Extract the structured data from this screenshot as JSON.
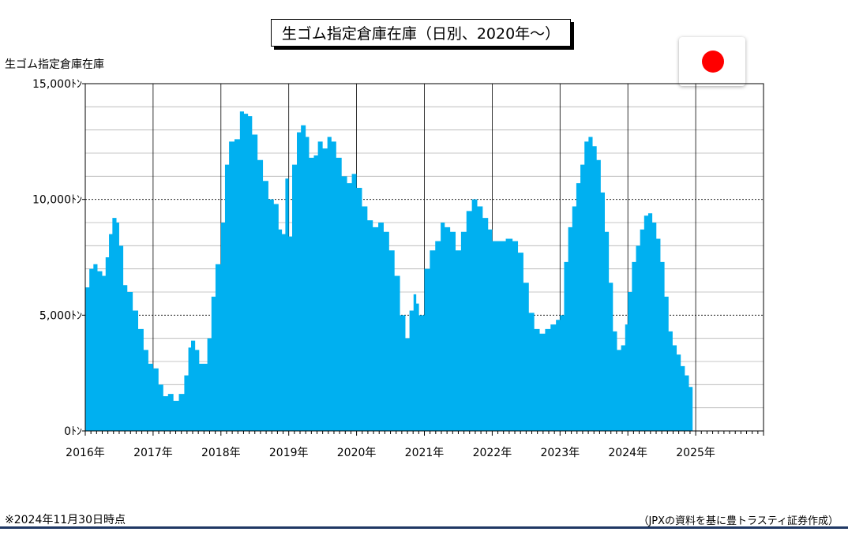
{
  "title": "生ゴム指定倉庫在庫（日別、2020年～）",
  "note": "※2024年11月30日時点",
  "source": "（JPXの資料を基に豊トラスティ証券作成）",
  "flag": {
    "icon": "japan-flag-icon",
    "color": "#ff0000"
  },
  "chart_data": {
    "type": "area",
    "ylabel": "生ゴム指定倉庫在庫",
    "ylim": [
      0,
      15000
    ],
    "yticks": [
      0,
      5000,
      10000,
      15000
    ],
    "ytick_labels": [
      "0ﾄﾝ",
      "5,000ﾄﾝ",
      "10,000ﾄﾝ",
      "15,000ﾄﾝ"
    ],
    "xlim": [
      2016,
      2026
    ],
    "xtick_labels": [
      "2016年",
      "2017年",
      "2018年",
      "2019年",
      "2020年",
      "2021年",
      "2022年",
      "2023年",
      "2024年",
      "2025年"
    ],
    "fill_color": "#00b0f0",
    "grid": true,
    "series": [
      {
        "values": [
          [
            2016.0,
            6200
          ],
          [
            2016.06,
            7000
          ],
          [
            2016.12,
            7200
          ],
          [
            2016.18,
            6900
          ],
          [
            2016.25,
            6700
          ],
          [
            2016.3,
            7500
          ],
          [
            2016.35,
            8500
          ],
          [
            2016.4,
            9200
          ],
          [
            2016.46,
            9000
          ],
          [
            2016.5,
            8000
          ],
          [
            2016.56,
            6300
          ],
          [
            2016.62,
            6000
          ],
          [
            2016.7,
            5200
          ],
          [
            2016.78,
            4400
          ],
          [
            2016.86,
            3500
          ],
          [
            2016.93,
            2900
          ],
          [
            2017.0,
            2700
          ],
          [
            2017.08,
            2000
          ],
          [
            2017.15,
            1500
          ],
          [
            2017.22,
            1600
          ],
          [
            2017.3,
            1300
          ],
          [
            2017.38,
            1600
          ],
          [
            2017.46,
            2400
          ],
          [
            2017.52,
            3600
          ],
          [
            2017.56,
            3900
          ],
          [
            2017.62,
            3500
          ],
          [
            2017.68,
            2900
          ],
          [
            2017.75,
            2900
          ],
          [
            2017.8,
            4000
          ],
          [
            2017.86,
            5800
          ],
          [
            2017.92,
            7200
          ],
          [
            2018.0,
            9000
          ],
          [
            2018.06,
            11500
          ],
          [
            2018.12,
            12500
          ],
          [
            2018.2,
            12600
          ],
          [
            2018.28,
            13800
          ],
          [
            2018.34,
            13700
          ],
          [
            2018.4,
            13600
          ],
          [
            2018.46,
            12800
          ],
          [
            2018.54,
            11700
          ],
          [
            2018.62,
            10800
          ],
          [
            2018.7,
            10000
          ],
          [
            2018.78,
            9800
          ],
          [
            2018.85,
            8700
          ],
          [
            2018.9,
            8500
          ],
          [
            2018.95,
            10900
          ],
          [
            2019.0,
            8400
          ],
          [
            2019.05,
            11500
          ],
          [
            2019.12,
            12900
          ],
          [
            2019.18,
            13200
          ],
          [
            2019.25,
            12700
          ],
          [
            2019.3,
            11800
          ],
          [
            2019.37,
            11900
          ],
          [
            2019.43,
            12500
          ],
          [
            2019.5,
            12200
          ],
          [
            2019.57,
            12700
          ],
          [
            2019.63,
            12500
          ],
          [
            2019.7,
            11800
          ],
          [
            2019.78,
            11000
          ],
          [
            2019.86,
            10700
          ],
          [
            2019.93,
            11100
          ],
          [
            2020.0,
            10500
          ],
          [
            2020.08,
            9700
          ],
          [
            2020.16,
            9100
          ],
          [
            2020.24,
            8800
          ],
          [
            2020.32,
            9000
          ],
          [
            2020.4,
            8600
          ],
          [
            2020.48,
            7800
          ],
          [
            2020.56,
            6700
          ],
          [
            2020.64,
            5000
          ],
          [
            2020.72,
            4000
          ],
          [
            2020.78,
            5200
          ],
          [
            2020.84,
            5900
          ],
          [
            2020.88,
            5500
          ],
          [
            2020.92,
            5000
          ],
          [
            2021.0,
            7000
          ],
          [
            2021.08,
            7800
          ],
          [
            2021.16,
            8200
          ],
          [
            2021.24,
            9000
          ],
          [
            2021.3,
            8800
          ],
          [
            2021.38,
            8600
          ],
          [
            2021.46,
            7800
          ],
          [
            2021.54,
            8600
          ],
          [
            2021.62,
            9500
          ],
          [
            2021.7,
            10000
          ],
          [
            2021.78,
            9700
          ],
          [
            2021.86,
            9200
          ],
          [
            2021.94,
            8700
          ],
          [
            2022.0,
            8200
          ],
          [
            2022.1,
            8200
          ],
          [
            2022.2,
            8300
          ],
          [
            2022.3,
            8200
          ],
          [
            2022.38,
            7700
          ],
          [
            2022.46,
            6400
          ],
          [
            2022.54,
            5100
          ],
          [
            2022.62,
            4400
          ],
          [
            2022.7,
            4200
          ],
          [
            2022.78,
            4400
          ],
          [
            2022.86,
            4600
          ],
          [
            2022.94,
            4800
          ],
          [
            2023.0,
            5000
          ],
          [
            2023.06,
            7300
          ],
          [
            2023.12,
            8800
          ],
          [
            2023.18,
            9700
          ],
          [
            2023.24,
            10700
          ],
          [
            2023.3,
            11500
          ],
          [
            2023.36,
            12500
          ],
          [
            2023.42,
            12700
          ],
          [
            2023.48,
            12300
          ],
          [
            2023.54,
            11700
          ],
          [
            2023.6,
            10300
          ],
          [
            2023.66,
            8600
          ],
          [
            2023.72,
            6400
          ],
          [
            2023.78,
            4300
          ],
          [
            2023.84,
            3500
          ],
          [
            2023.9,
            3700
          ],
          [
            2023.96,
            4600
          ],
          [
            2024.0,
            6000
          ],
          [
            2024.06,
            7300
          ],
          [
            2024.12,
            8000
          ],
          [
            2024.18,
            8700
          ],
          [
            2024.24,
            9300
          ],
          [
            2024.3,
            9400
          ],
          [
            2024.36,
            9000
          ],
          [
            2024.42,
            8300
          ],
          [
            2024.48,
            7300
          ],
          [
            2024.54,
            5800
          ],
          [
            2024.6,
            4300
          ],
          [
            2024.66,
            3700
          ],
          [
            2024.72,
            3300
          ],
          [
            2024.78,
            2800
          ],
          [
            2024.84,
            2400
          ],
          [
            2024.9,
            1900
          ],
          [
            2024.92,
            1900
          ]
        ]
      }
    ]
  }
}
